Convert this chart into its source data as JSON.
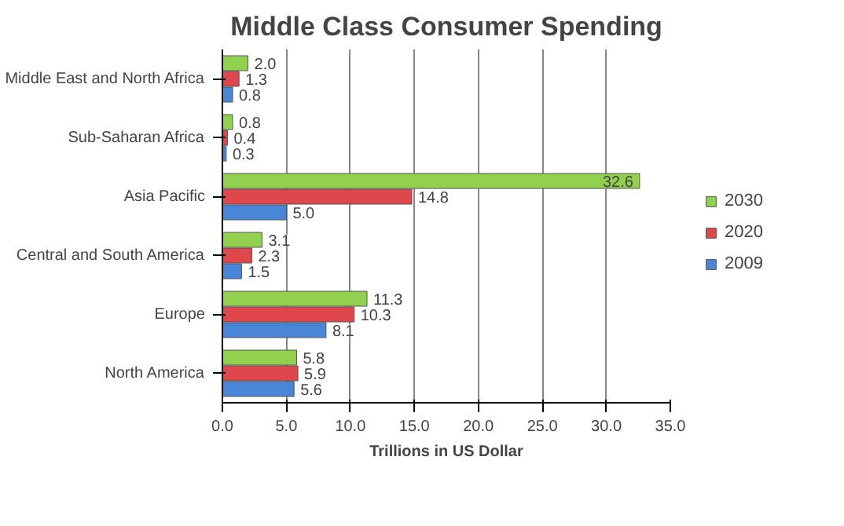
{
  "chart_data": {
    "type": "bar",
    "orientation": "horizontal",
    "title": "Middle Class Consumer Spending",
    "xlabel": "Trillions in US Dollar",
    "categories": [
      "Middle East and North Africa",
      "Sub-Saharan Africa",
      "Asia Pacific",
      "Central and South America",
      "Europe",
      "North America"
    ],
    "series": [
      {
        "name": "2030",
        "color": "#92d050",
        "values": [
          2.0,
          0.8,
          32.6,
          3.1,
          11.3,
          5.8
        ],
        "value_labels": [
          "2.0",
          "0.8",
          "32.6",
          "3.1",
          "11.3",
          "5.8"
        ]
      },
      {
        "name": "2020",
        "color": "#e0474c",
        "values": [
          1.3,
          0.4,
          14.8,
          2.3,
          10.3,
          5.9
        ],
        "value_labels": [
          "1.3",
          "0.4",
          "14.8",
          "2.3",
          "10.3",
          "5.9"
        ]
      },
      {
        "name": "2009",
        "color": "#4a86d8",
        "values": [
          0.8,
          0.3,
          5.0,
          1.5,
          8.1,
          5.6
        ],
        "value_labels": [
          "0.8",
          "0.3",
          "5.0",
          "1.5",
          "8.1",
          "5.6"
        ]
      }
    ],
    "xlim": [
      0,
      35
    ],
    "xticks": [
      {
        "value": 0,
        "label": "0.0"
      },
      {
        "value": 5,
        "label": "5.0"
      },
      {
        "value": 10,
        "label": "10.0"
      },
      {
        "value": 15,
        "label": "15.0"
      },
      {
        "value": 20,
        "label": "20.0"
      },
      {
        "value": 25,
        "label": "25.0"
      },
      {
        "value": 30,
        "label": "30.0"
      },
      {
        "value": 35,
        "label": "35.0"
      }
    ],
    "grid": "x",
    "legend": "right"
  }
}
